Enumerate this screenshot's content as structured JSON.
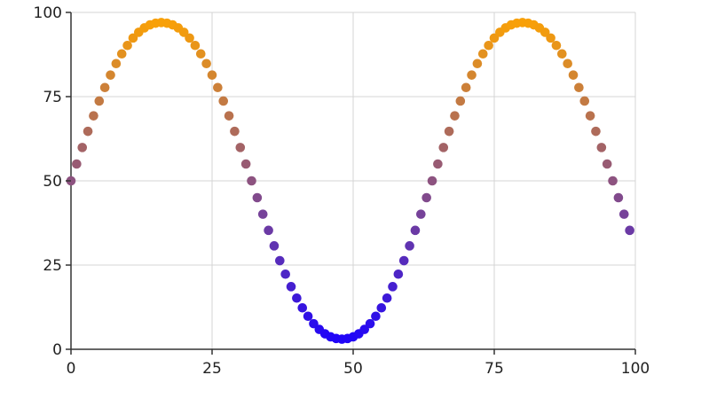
{
  "chart_data": {
    "type": "scatter",
    "title": "",
    "xlabel": "",
    "ylabel": "",
    "xlim": [
      0,
      100
    ],
    "ylim": [
      0,
      100
    ],
    "grid": true,
    "x_ticks": [
      0,
      25,
      50,
      75,
      100
    ],
    "y_ticks": [
      0,
      25,
      50,
      75,
      100
    ],
    "x_tick_labels": [
      "0",
      "25",
      "50",
      "75",
      "100"
    ],
    "y_tick_labels": [
      "0",
      "25",
      "50",
      "75",
      "100"
    ],
    "color_low": "#1a00ff",
    "color_high": "#ffa500",
    "series": [
      {
        "name": "points",
        "x": [
          0,
          1,
          2,
          3,
          4,
          5,
          6,
          7,
          8,
          9,
          10,
          11,
          12,
          13,
          14,
          15,
          16,
          17,
          18,
          19,
          20,
          21,
          22,
          23,
          24,
          25,
          26,
          27,
          28,
          29,
          30,
          31,
          32,
          33,
          34,
          35,
          36,
          37,
          38,
          39,
          40,
          41,
          42,
          43,
          44,
          45,
          46,
          47,
          48,
          49,
          50,
          51,
          52,
          53,
          54,
          55,
          56,
          57,
          58,
          59,
          60,
          61,
          62,
          63,
          64,
          65,
          66,
          67,
          68,
          69,
          70,
          71,
          72,
          73,
          74,
          75,
          76,
          77,
          78,
          79,
          80,
          81,
          82,
          83,
          84,
          85,
          86,
          87,
          88,
          89,
          90,
          91,
          92,
          93,
          94,
          95,
          96,
          97,
          98,
          99
        ],
        "y": [
          50.0,
          55.0,
          59.9,
          64.7,
          69.3,
          73.7,
          77.7,
          81.4,
          84.8,
          87.7,
          90.2,
          92.4,
          94.1,
          95.4,
          96.3,
          96.8,
          97.0,
          96.8,
          96.3,
          95.4,
          94.1,
          92.4,
          90.2,
          87.7,
          84.8,
          81.4,
          77.7,
          73.7,
          69.3,
          64.7,
          59.9,
          55.0,
          50.0,
          45.0,
          40.1,
          35.3,
          30.7,
          26.3,
          22.3,
          18.6,
          15.2,
          12.3,
          9.8,
          7.6,
          5.9,
          4.6,
          3.7,
          3.2,
          3.0,
          3.2,
          3.7,
          4.6,
          5.9,
          7.6,
          9.8,
          12.3,
          15.2,
          18.6,
          22.3,
          26.3,
          30.7,
          35.3,
          40.1,
          45.0,
          50.0,
          55.0,
          59.9,
          64.7,
          69.3,
          73.7,
          77.7,
          81.4,
          84.8,
          87.7,
          90.2,
          92.4,
          94.1,
          95.4,
          96.3,
          96.8,
          97.0,
          96.8,
          96.3,
          95.4,
          94.1,
          92.4,
          90.2,
          87.7,
          84.8,
          81.4,
          77.7,
          73.7,
          69.3,
          64.7,
          59.9,
          55.0,
          50.0,
          45.0,
          40.1,
          35.3
        ]
      }
    ]
  }
}
